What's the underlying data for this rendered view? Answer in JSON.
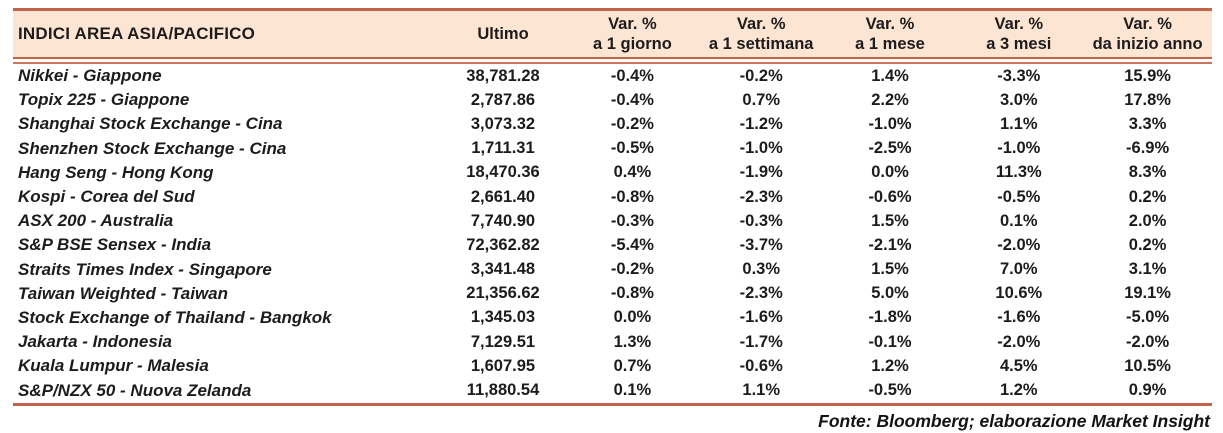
{
  "table": {
    "title": "INDICI AREA ASIA/PACIFICO",
    "columns": {
      "ultimo": "Ultimo",
      "var": [
        {
          "line1": "Var. %",
          "line2": "a 1 giorno"
        },
        {
          "line1": "Var. %",
          "line2": "a 1 settimana"
        },
        {
          "line1": "Var. %",
          "line2": "a 1 mese"
        },
        {
          "line1": "Var. %",
          "line2": "a 3 mesi"
        },
        {
          "line1": "Var. %",
          "line2": "da inizio anno"
        }
      ]
    },
    "rows": [
      {
        "name": "Nikkei - Giappone",
        "ultimo": "38,781.28",
        "d1": "-0.4%",
        "w1": "-0.2%",
        "m1": "1.4%",
        "m3": "-3.3%",
        "ytd": "15.9%"
      },
      {
        "name": "Topix 225 - Giappone",
        "ultimo": "2,787.86",
        "d1": "-0.4%",
        "w1": "0.7%",
        "m1": "2.2%",
        "m3": "3.0%",
        "ytd": "17.8%"
      },
      {
        "name": "Shanghai Stock Exchange - Cina",
        "ultimo": "3,073.32",
        "d1": "-0.2%",
        "w1": "-1.2%",
        "m1": "-1.0%",
        "m3": "1.1%",
        "ytd": "3.3%"
      },
      {
        "name": "Shenzhen Stock Exchange - Cina",
        "ultimo": "1,711.31",
        "d1": "-0.5%",
        "w1": "-1.0%",
        "m1": "-2.5%",
        "m3": "-1.0%",
        "ytd": "-6.9%"
      },
      {
        "name": "Hang Seng - Hong Kong",
        "ultimo": "18,470.36",
        "d1": "0.4%",
        "w1": "-1.9%",
        "m1": "0.0%",
        "m3": "11.3%",
        "ytd": "8.3%"
      },
      {
        "name": "Kospi - Corea del Sud",
        "ultimo": "2,661.40",
        "d1": "-0.8%",
        "w1": "-2.3%",
        "m1": "-0.6%",
        "m3": "-0.5%",
        "ytd": "0.2%"
      },
      {
        "name": "ASX 200 - Australia",
        "ultimo": "7,740.90",
        "d1": "-0.3%",
        "w1": "-0.3%",
        "m1": "1.5%",
        "m3": "0.1%",
        "ytd": "2.0%"
      },
      {
        "name": "S&P BSE Sensex - India",
        "ultimo": "72,362.82",
        "d1": "-5.4%",
        "w1": "-3.7%",
        "m1": "-2.1%",
        "m3": "-2.0%",
        "ytd": "0.2%"
      },
      {
        "name": "Straits Times Index - Singapore",
        "ultimo": "3,341.48",
        "d1": "-0.2%",
        "w1": "0.3%",
        "m1": "1.5%",
        "m3": "7.0%",
        "ytd": "3.1%"
      },
      {
        "name": "Taiwan Weighted - Taiwan",
        "ultimo": "21,356.62",
        "d1": "-0.8%",
        "w1": "-2.3%",
        "m1": "5.0%",
        "m3": "10.6%",
        "ytd": "19.1%"
      },
      {
        "name": "Stock Exchange of Thailand - Bangkok",
        "ultimo": "1,345.03",
        "d1": "0.0%",
        "w1": "-1.6%",
        "m1": "-1.8%",
        "m3": "-1.6%",
        "ytd": "-5.0%"
      },
      {
        "name": "Jakarta - Indonesia",
        "ultimo": "7,129.51",
        "d1": "1.3%",
        "w1": "-1.7%",
        "m1": "-0.1%",
        "m3": "-2.0%",
        "ytd": "-2.0%"
      },
      {
        "name": "Kuala Lumpur - Malesia",
        "ultimo": "1,607.95",
        "d1": "0.7%",
        "w1": "-0.6%",
        "m1": "1.2%",
        "m3": "4.5%",
        "ytd": "10.5%"
      },
      {
        "name": "S&P/NZX 50 - Nuova Zelanda",
        "ultimo": "11,880.54",
        "d1": "0.1%",
        "w1": "1.1%",
        "m1": "-0.5%",
        "m3": "1.2%",
        "ytd": "0.9%"
      }
    ],
    "footer": "Fonte: Bloomberg; elaborazione Market Insight"
  },
  "colors": {
    "header_bg": "#fce5d3",
    "rule": "#c2634c",
    "rule_light": "#cb7560",
    "text": "#1d1b1c"
  }
}
